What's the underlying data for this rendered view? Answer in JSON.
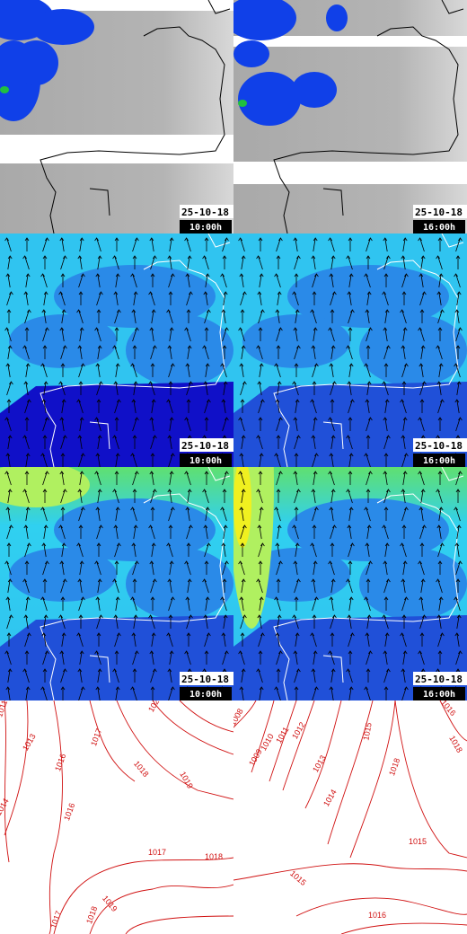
{
  "panels": [
    {
      "date": "25-10-18",
      "time": "10:00h"
    },
    {
      "date": "25-10-18",
      "time": "16:00h"
    },
    {
      "date": "25-10-18",
      "time": "10:00h"
    },
    {
      "date": "25-10-18",
      "time": "16:00h"
    },
    {
      "date": "25-10-18",
      "time": "10:00h"
    },
    {
      "date": "25-10-18",
      "time": "16:00h"
    }
  ],
  "isobars": {
    "left": [
      "1011",
      "1013",
      "1016",
      "1017",
      "1018",
      "1019",
      "1020",
      "1014",
      "1016",
      "1017",
      "1018",
      "1017",
      "1018",
      "1019"
    ],
    "right": [
      "1008",
      "1009",
      "1010",
      "1011",
      "1012",
      "1013",
      "1014",
      "1015",
      "1016",
      "1018",
      "1018",
      "1015",
      "1015",
      "1016"
    ]
  }
}
